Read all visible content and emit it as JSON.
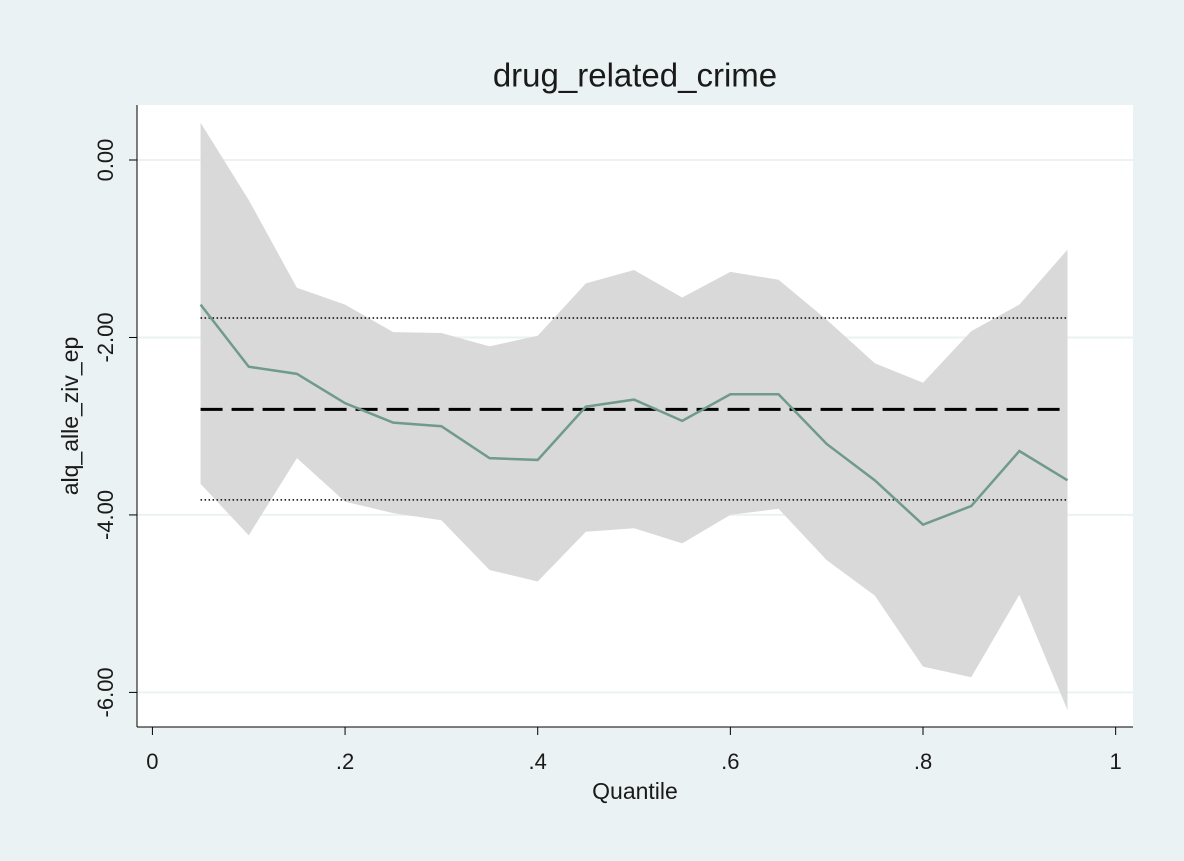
{
  "chart_data": {
    "type": "quantile-band",
    "title": "drug_related_crime",
    "x_label": "Quantile",
    "y_label": "alq_alle_ziv_ep",
    "x": [
      0.05,
      0.1,
      0.15,
      0.2,
      0.25,
      0.3,
      0.35,
      0.4,
      0.45,
      0.5,
      0.55,
      0.6,
      0.65,
      0.7,
      0.75,
      0.8,
      0.85,
      0.9,
      0.95
    ],
    "series": [
      {
        "color": "#6f9a8d",
        "values": [
          -1.63,
          -2.33,
          -2.41,
          -2.74,
          -2.96,
          -3.0,
          -3.36,
          -3.38,
          -2.78,
          -2.7,
          -2.94,
          -2.64,
          -2.64,
          -3.2,
          -3.61,
          -4.11,
          -3.9,
          -3.28,
          -3.61
        ]
      }
    ],
    "band": {
      "color": "#d9d9d9",
      "upper": [
        0.42,
        -0.45,
        -1.44,
        -1.63,
        -1.94,
        -1.95,
        -2.1,
        -1.98,
        -1.39,
        -1.24,
        -1.55,
        -1.26,
        -1.35,
        -1.8,
        -2.29,
        -2.51,
        -1.93,
        -1.63,
        -1.01
      ],
      "lower": [
        -3.65,
        -4.23,
        -3.36,
        -3.85,
        -3.98,
        -4.06,
        -4.62,
        -4.75,
        -4.19,
        -4.15,
        -4.32,
        -4.0,
        -3.93,
        -4.51,
        -4.91,
        -5.71,
        -5.83,
        -4.9,
        -6.2
      ]
    },
    "ols": {
      "estimate": -2.81,
      "ci": [
        -3.83,
        -1.78
      ],
      "color": "#000000"
    },
    "xlim": [
      -0.016,
      1.018
    ],
    "ylim": [
      -6.39,
      0.62
    ],
    "xticks": [
      0,
      {
        "value": 0.2,
        "label": ".2"
      },
      {
        "value": 0.4,
        "label": ".4"
      },
      {
        "value": 0.6,
        "label": ".6"
      },
      {
        "value": 0.8,
        "label": ".8"
      },
      1
    ],
    "yticks": [
      {
        "value": -6,
        "label": "-6.00"
      },
      {
        "value": -4,
        "label": "-4.00"
      },
      {
        "value": -2,
        "label": "-2.00"
      },
      {
        "value": 0,
        "label": "0.00"
      }
    ],
    "grid": true
  }
}
